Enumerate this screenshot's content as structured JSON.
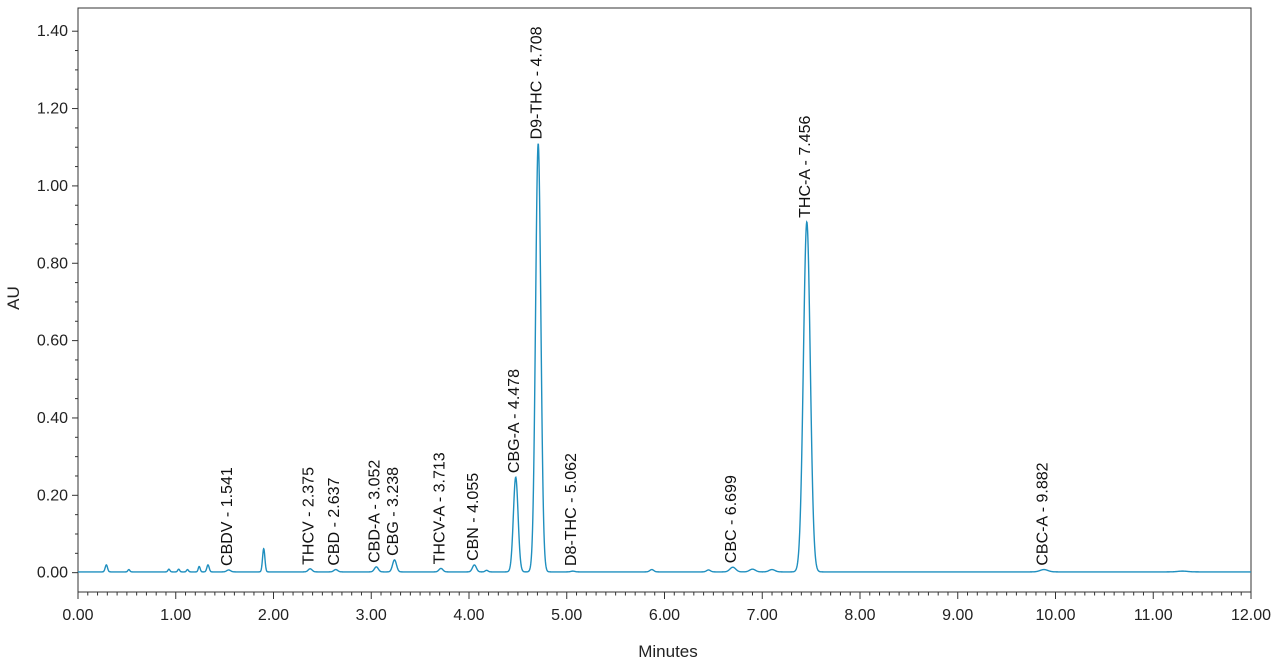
{
  "chart_data": {
    "type": "line",
    "xlabel": "Minutes",
    "ylabel": "AU",
    "xlim": [
      0,
      12
    ],
    "ylim": [
      -0.05,
      1.46
    ],
    "x_ticks": [
      "0.00",
      "1.00",
      "2.00",
      "3.00",
      "4.00",
      "5.00",
      "6.00",
      "7.00",
      "8.00",
      "9.00",
      "10.00",
      "11.00",
      "12.00"
    ],
    "y_ticks": [
      "0.00",
      "0.20",
      "0.40",
      "0.60",
      "0.80",
      "1.00",
      "1.20",
      "1.40"
    ],
    "grid": false,
    "line_color": "#1f8fbf",
    "baseline": 0.002,
    "peaks": [
      {
        "label": "CBDV - 1.541",
        "rt": 1.541,
        "height": 0.005,
        "width": 0.02
      },
      {
        "label": "THCV - 2.375",
        "rt": 2.375,
        "height": 0.008,
        "width": 0.02
      },
      {
        "label": "CBD - 2.637",
        "rt": 2.637,
        "height": 0.006,
        "width": 0.02
      },
      {
        "label": "CBD-A - 3.052",
        "rt": 3.052,
        "height": 0.013,
        "width": 0.02
      },
      {
        "label": "CBG - 3.238",
        "rt": 3.238,
        "height": 0.031,
        "width": 0.02
      },
      {
        "label": "THCV-A - 3.713",
        "rt": 3.713,
        "height": 0.009,
        "width": 0.02
      },
      {
        "label": "CBN - 4.055",
        "rt": 4.055,
        "height": 0.018,
        "width": 0.02
      },
      {
        "label": "CBG-A - 4.478",
        "rt": 4.478,
        "height": 0.245,
        "width": 0.024
      },
      {
        "label": "D9-THC - 4.708",
        "rt": 4.708,
        "height": 1.108,
        "width": 0.027
      },
      {
        "label": "D8-THC - 5.062",
        "rt": 5.062,
        "height": 0.002,
        "width": 0.02
      },
      {
        "label": "CBC - 6.699",
        "rt": 6.699,
        "height": 0.012,
        "width": 0.03
      },
      {
        "label": "THC-A - 7.456",
        "rt": 7.456,
        "height": 0.905,
        "width": 0.035
      },
      {
        "label": "CBC-A - 9.882",
        "rt": 9.882,
        "height": 0.006,
        "width": 0.04
      }
    ],
    "unlabeled_peaks": [
      {
        "rt": 0.29,
        "height": 0.018,
        "width": 0.012
      },
      {
        "rt": 0.52,
        "height": 0.006,
        "width": 0.01
      },
      {
        "rt": 0.93,
        "height": 0.007,
        "width": 0.01
      },
      {
        "rt": 1.03,
        "height": 0.007,
        "width": 0.01
      },
      {
        "rt": 1.12,
        "height": 0.006,
        "width": 0.01
      },
      {
        "rt": 1.24,
        "height": 0.014,
        "width": 0.01
      },
      {
        "rt": 1.33,
        "height": 0.018,
        "width": 0.012
      },
      {
        "rt": 1.9,
        "height": 0.06,
        "width": 0.012
      },
      {
        "rt": 4.18,
        "height": 0.004,
        "width": 0.015
      },
      {
        "rt": 5.87,
        "height": 0.006,
        "width": 0.02
      },
      {
        "rt": 6.45,
        "height": 0.005,
        "width": 0.02
      },
      {
        "rt": 6.9,
        "height": 0.007,
        "width": 0.03
      },
      {
        "rt": 7.1,
        "height": 0.006,
        "width": 0.03
      },
      {
        "rt": 11.3,
        "height": 0.002,
        "width": 0.05
      }
    ]
  }
}
